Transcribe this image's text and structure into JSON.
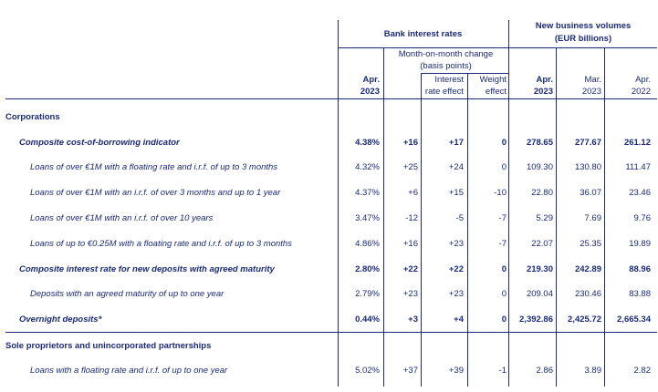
{
  "header": {
    "bank_rates": "Bank interest rates",
    "volumes_line1": "New business volumes",
    "volumes_line2": "(EUR billions)",
    "mom_line1": "Month-on-month change",
    "mom_line2": "(basis points)",
    "ir_effect_line1": "Interest",
    "ir_effect_line2": "rate effect",
    "w_effect_line1": "Weight",
    "w_effect_line2": "effect",
    "col1_line1": "Apr.",
    "col1_line2": "2023",
    "col5_line1": "Apr.",
    "col5_line2": "2023",
    "col6_line1": "Mar.",
    "col6_line2": "2023",
    "col7_line1": "Apr.",
    "col7_line2": "2022"
  },
  "sections": {
    "corporations": "Corporations",
    "sole": "Sole proprietors and unincorporated partnerships"
  },
  "rows": [
    {
      "label": "Composite cost-of-borrowing indicator",
      "values": [
        "4.38%",
        "+16",
        "+17",
        "0",
        "278.65",
        "277.67",
        "261.12"
      ]
    },
    {
      "label": "Loans of over €1M with a floating rate and i.r.f. of up to 3 months",
      "values": [
        "4.32%",
        "+25",
        "+24",
        "0",
        "109.30",
        "130.80",
        "111.47"
      ]
    },
    {
      "label": "Loans of over €1M with an i.r.f. of over 3 months and up to 1 year",
      "values": [
        "4.37%",
        "+6",
        "+15",
        "-10",
        "22.80",
        "36.07",
        "23.46"
      ]
    },
    {
      "label": "Loans of over €1M with an i.r.f. of over 10 years",
      "values": [
        "3.47%",
        "-12",
        "-5",
        "-7",
        "5.29",
        "7.69",
        "9.76"
      ]
    },
    {
      "label": "Loans of up to €0.25M with a floating rate and i.r.f. of up to 3 months",
      "values": [
        "4.86%",
        "+16",
        "+23",
        "-7",
        "22.07",
        "25.35",
        "19.89"
      ]
    },
    {
      "label": "Composite interest rate for new deposits with agreed maturity",
      "values": [
        "2.80%",
        "+22",
        "+22",
        "0",
        "219.30",
        "242.89",
        "88.96"
      ]
    },
    {
      "label": "Deposits with an agreed maturity of up to one year",
      "values": [
        "2.79%",
        "+23",
        "+23",
        "0",
        "209.04",
        "230.46",
        "83.88"
      ]
    },
    {
      "label": "Overnight deposits*",
      "values": [
        "0.44%",
        "+3",
        "+4",
        "0",
        "2,392.86",
        "2,425.72",
        "2,665.34"
      ]
    },
    {
      "label": "Loans with a floating rate and i.r.f. of up to one year",
      "values": [
        "5.02%",
        "+37",
        "+39",
        "-1",
        "2.86",
        "3.89",
        "2.82"
      ]
    }
  ]
}
